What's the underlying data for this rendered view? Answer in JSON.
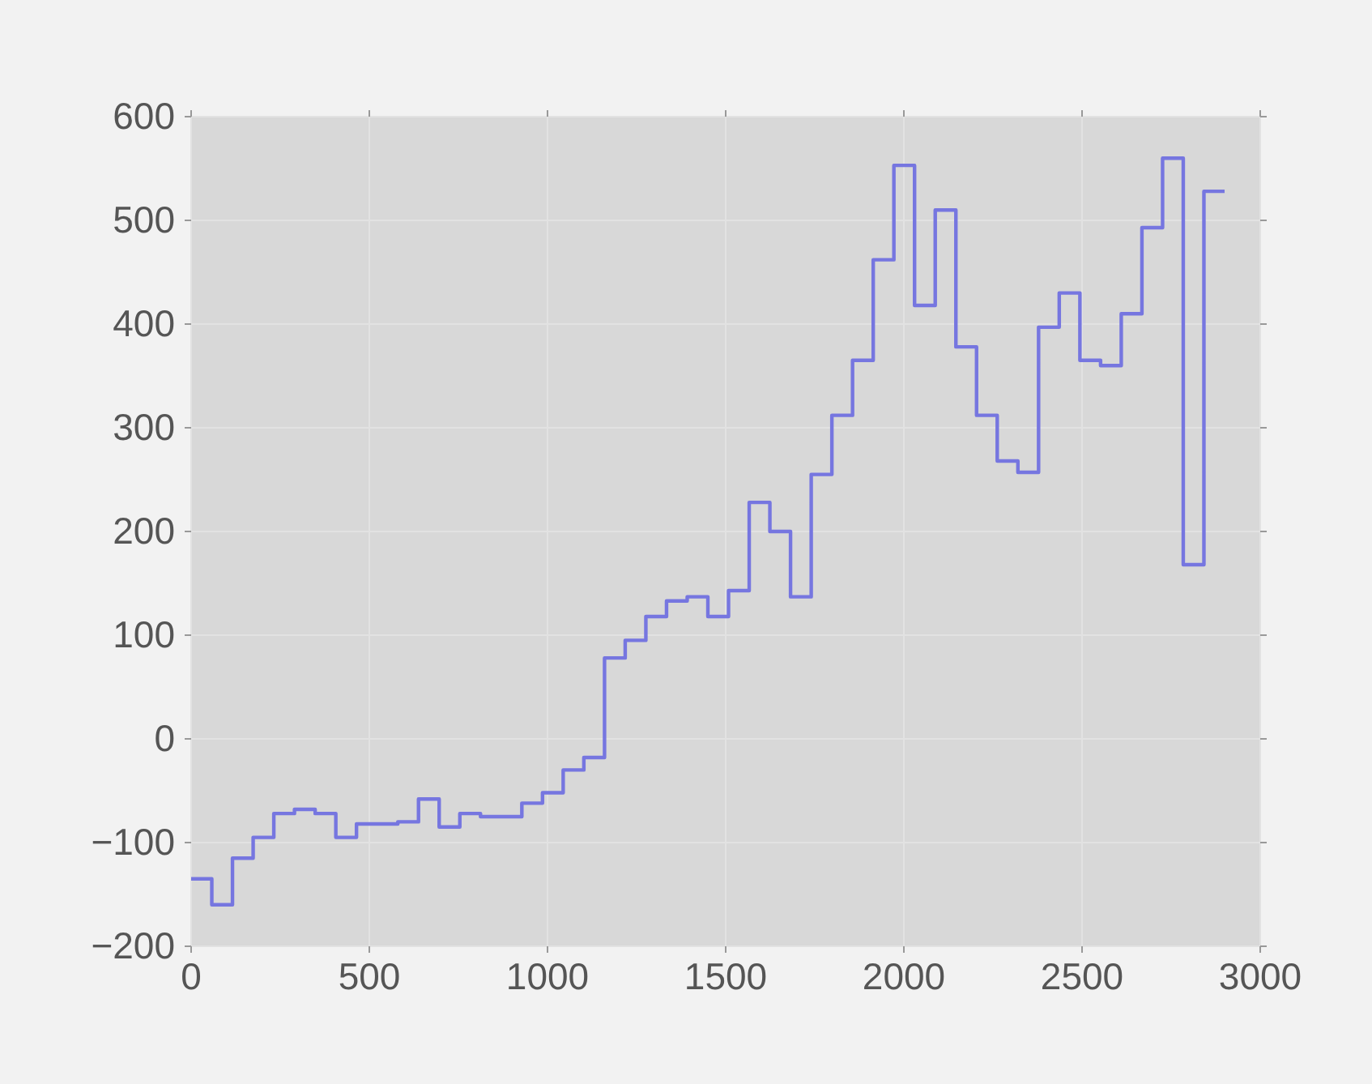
{
  "chart_data": {
    "type": "step",
    "x": [
      0,
      58,
      116,
      174,
      232,
      290,
      348,
      406,
      464,
      522,
      580,
      638,
      696,
      754,
      812,
      870,
      928,
      986,
      1044,
      1102,
      1160,
      1218,
      1276,
      1334,
      1392,
      1450,
      1508,
      1566,
      1624,
      1682,
      1740,
      1798,
      1856,
      1914,
      1972,
      2030,
      2088,
      2146,
      2204,
      2262,
      2320,
      2378,
      2436,
      2494,
      2552,
      2610,
      2668,
      2726,
      2784,
      2842,
      2900
    ],
    "series": [
      {
        "color": "#7676e0",
        "values": [
          -135,
          -160,
          -115,
          -95,
          -72,
          -68,
          -72,
          -95,
          -82,
          -82,
          -80,
          -58,
          -85,
          -72,
          -75,
          -75,
          -62,
          -52,
          -30,
          -18,
          78,
          95,
          118,
          133,
          137,
          118,
          143,
          228,
          200,
          137,
          255,
          312,
          365,
          462,
          553,
          418,
          510,
          378,
          312,
          268,
          257,
          397,
          430,
          365,
          360,
          410,
          493,
          560,
          168,
          528,
          528
        ]
      }
    ],
    "xlim": [
      0,
      3000
    ],
    "xticks": [
      0,
      500,
      1000,
      1500,
      2000,
      2500,
      3000
    ],
    "ylim": [
      -200,
      600
    ],
    "yticks": [
      -200,
      -100,
      0,
      100,
      200,
      300,
      400,
      500,
      600
    ],
    "grid": true,
    "line_style": "solid",
    "marker": "none"
  }
}
